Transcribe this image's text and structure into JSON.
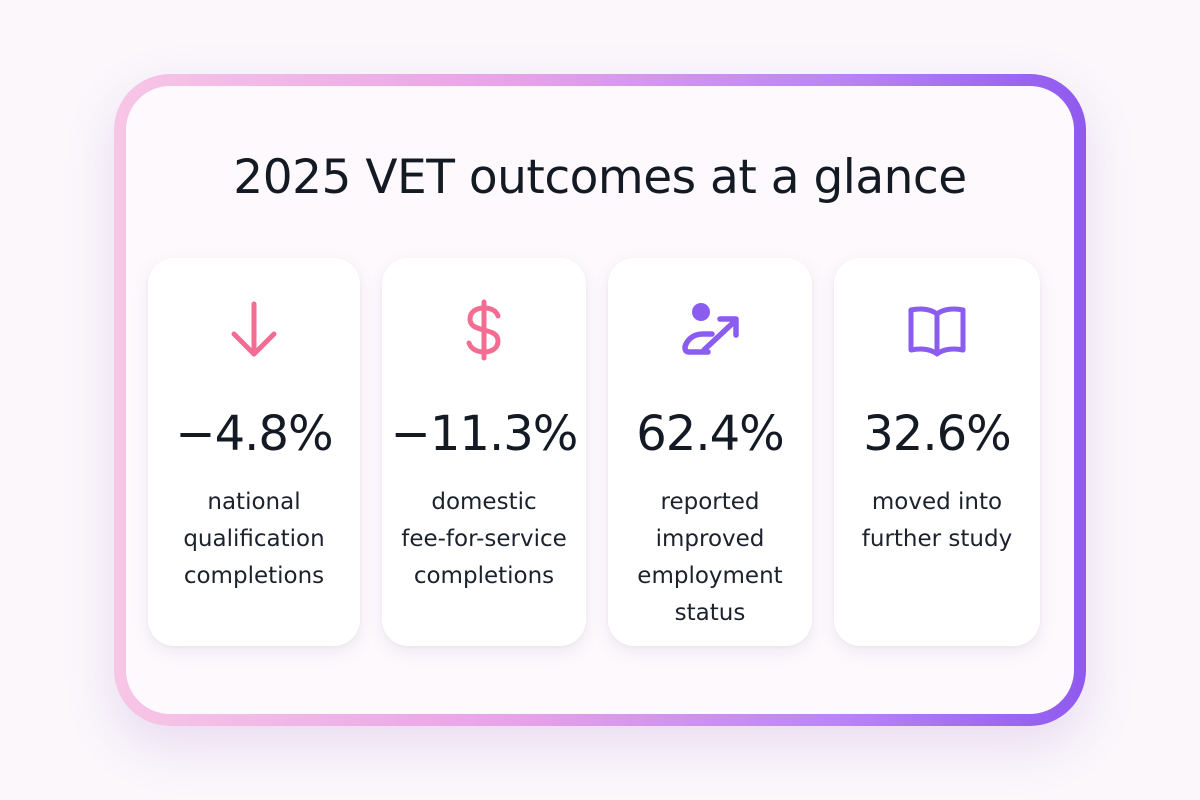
{
  "title": "2025 VET outcomes at a glance",
  "colors": {
    "pink_accent": "#f36d92",
    "purple_accent": "#8b5cf0"
  },
  "cards": [
    {
      "icon": "arrow-down-icon",
      "value": "−4.8%",
      "label": "national\nqualification\ncompletions"
    },
    {
      "icon": "dollar-icon",
      "value": "−11.3%",
      "label": "domestic\nfee-for-service\ncompletions"
    },
    {
      "icon": "person-trend-up-icon",
      "value": "62.4%",
      "label": "reported\nimproved\nemployment\nstatus"
    },
    {
      "icon": "open-book-icon",
      "value": "32.6%",
      "label": "moved into\nfurther study"
    }
  ]
}
